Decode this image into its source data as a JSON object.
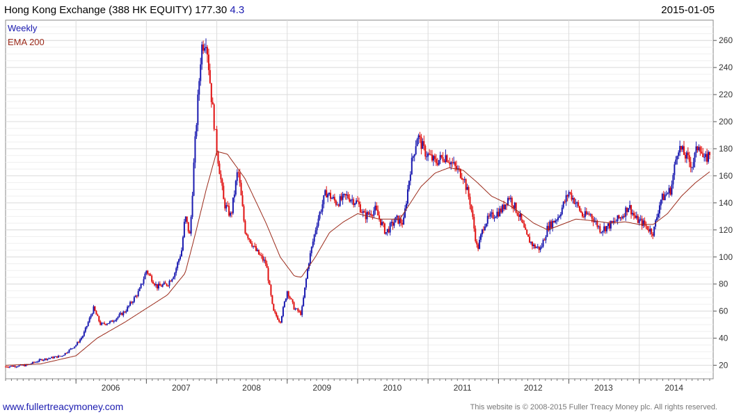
{
  "header": {
    "title": "Hong Kong Exchange (388 HK EQUITY) 177.30",
    "change": "4.3",
    "date": "2015-01-05"
  },
  "footer": {
    "site": "www.fullertreacymoney.com",
    "copyright": "This website is © 2008-2015 Fuller Treacy Money plc. All rights reserved."
  },
  "colors": {
    "up": "#1a1ab0",
    "down": "#e01010",
    "ema": "#9b2a1a",
    "grid": "#dcdcdc"
  },
  "chart_data": {
    "type": "candlestick",
    "legend": [
      "Weekly",
      "EMA 200"
    ],
    "legend_position": "top-left",
    "x_tick_labels": [
      "2006",
      "2007",
      "2008",
      "2009",
      "2010",
      "2011",
      "2012",
      "2013",
      "2014"
    ],
    "xlim": [
      2005.0,
      2015.05
    ],
    "y_tick_labels": [
      20,
      40,
      60,
      80,
      100,
      120,
      140,
      160,
      180,
      200,
      220,
      240,
      260
    ],
    "ylim": [
      10,
      275
    ],
    "grid": true,
    "price_keypoints": [
      [
        2005.0,
        19
      ],
      [
        2005.3,
        20
      ],
      [
        2005.5,
        24
      ],
      [
        2005.8,
        27
      ],
      [
        2006.0,
        35
      ],
      [
        2006.1,
        42
      ],
      [
        2006.25,
        62
      ],
      [
        2006.35,
        50
      ],
      [
        2006.5,
        52
      ],
      [
        2006.7,
        60
      ],
      [
        2006.9,
        75
      ],
      [
        2007.0,
        90
      ],
      [
        2007.15,
        78
      ],
      [
        2007.3,
        80
      ],
      [
        2007.4,
        88
      ],
      [
        2007.5,
        105
      ],
      [
        2007.55,
        130
      ],
      [
        2007.62,
        115
      ],
      [
        2007.68,
        175
      ],
      [
        2007.78,
        255
      ],
      [
        2007.85,
        262
      ],
      [
        2007.92,
        220
      ],
      [
        2008.0,
        180
      ],
      [
        2008.1,
        140
      ],
      [
        2008.2,
        130
      ],
      [
        2008.3,
        165
      ],
      [
        2008.4,
        120
      ],
      [
        2008.55,
        105
      ],
      [
        2008.7,
        95
      ],
      [
        2008.8,
        60
      ],
      [
        2008.9,
        52
      ],
      [
        2009.0,
        75
      ],
      [
        2009.1,
        62
      ],
      [
        2009.2,
        58
      ],
      [
        2009.3,
        95
      ],
      [
        2009.42,
        125
      ],
      [
        2009.55,
        148
      ],
      [
        2009.7,
        140
      ],
      [
        2009.85,
        145
      ],
      [
        2010.0,
        140
      ],
      [
        2010.1,
        130
      ],
      [
        2010.25,
        135
      ],
      [
        2010.4,
        118
      ],
      [
        2010.55,
        128
      ],
      [
        2010.65,
        125
      ],
      [
        2010.75,
        165
      ],
      [
        2010.85,
        190
      ],
      [
        2010.95,
        178
      ],
      [
        2011.1,
        170
      ],
      [
        2011.25,
        175
      ],
      [
        2011.4,
        165
      ],
      [
        2011.5,
        160
      ],
      [
        2011.6,
        140
      ],
      [
        2011.7,
        105
      ],
      [
        2011.8,
        125
      ],
      [
        2011.9,
        130
      ],
      [
        2012.05,
        135
      ],
      [
        2012.15,
        145
      ],
      [
        2012.3,
        130
      ],
      [
        2012.4,
        115
      ],
      [
        2012.5,
        108
      ],
      [
        2012.6,
        106
      ],
      [
        2012.7,
        122
      ],
      [
        2012.85,
        130
      ],
      [
        2013.0,
        148
      ],
      [
        2013.1,
        140
      ],
      [
        2013.2,
        130
      ],
      [
        2013.3,
        132
      ],
      [
        2013.45,
        120
      ],
      [
        2013.6,
        124
      ],
      [
        2013.75,
        130
      ],
      [
        2013.85,
        138
      ],
      [
        2013.95,
        128
      ],
      [
        2014.05,
        125
      ],
      [
        2014.15,
        120
      ],
      [
        2014.2,
        118
      ],
      [
        2014.3,
        142
      ],
      [
        2014.45,
        150
      ],
      [
        2014.55,
        182
      ],
      [
        2014.65,
        175
      ],
      [
        2014.75,
        168
      ],
      [
        2014.85,
        185
      ],
      [
        2014.92,
        170
      ],
      [
        2015.0,
        177
      ]
    ],
    "ema_keypoints": [
      [
        2005.0,
        20
      ],
      [
        2005.5,
        21
      ],
      [
        2006.0,
        27
      ],
      [
        2006.3,
        40
      ],
      [
        2006.7,
        52
      ],
      [
        2007.0,
        62
      ],
      [
        2007.3,
        72
      ],
      [
        2007.55,
        88
      ],
      [
        2007.7,
        118
      ],
      [
        2007.85,
        150
      ],
      [
        2008.0,
        178
      ],
      [
        2008.15,
        176
      ],
      [
        2008.4,
        158
      ],
      [
        2008.7,
        125
      ],
      [
        2008.9,
        100
      ],
      [
        2009.1,
        86
      ],
      [
        2009.2,
        85
      ],
      [
        2009.4,
        100
      ],
      [
        2009.6,
        118
      ],
      [
        2009.8,
        126
      ],
      [
        2010.0,
        132
      ],
      [
        2010.3,
        128
      ],
      [
        2010.6,
        128
      ],
      [
        2010.75,
        140
      ],
      [
        2010.9,
        152
      ],
      [
        2011.1,
        162
      ],
      [
        2011.3,
        166
      ],
      [
        2011.5,
        164
      ],
      [
        2011.7,
        155
      ],
      [
        2011.9,
        145
      ],
      [
        2012.1,
        140
      ],
      [
        2012.3,
        133
      ],
      [
        2012.5,
        125
      ],
      [
        2012.7,
        120
      ],
      [
        2012.9,
        124
      ],
      [
        2013.1,
        128
      ],
      [
        2013.3,
        127
      ],
      [
        2013.6,
        125
      ],
      [
        2013.8,
        126
      ],
      [
        2014.0,
        124
      ],
      [
        2014.2,
        124
      ],
      [
        2014.4,
        132
      ],
      [
        2014.6,
        145
      ],
      [
        2014.8,
        155
      ],
      [
        2015.0,
        163
      ]
    ]
  }
}
